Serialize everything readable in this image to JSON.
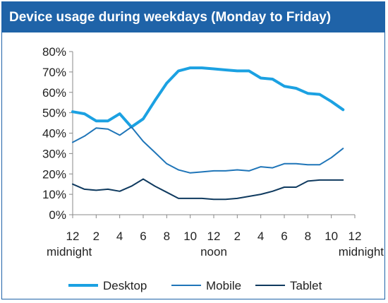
{
  "chart_data": {
    "type": "line",
    "title": "Device usage during weekdays (Monday to Friday)",
    "xlabel": "",
    "ylabel": "",
    "x_hours": [
      0,
      1,
      2,
      3,
      4,
      5,
      6,
      7,
      8,
      9,
      10,
      11,
      12,
      13,
      14,
      15,
      16,
      17,
      18,
      19,
      20,
      21,
      22,
      23
    ],
    "x_ticks": [
      {
        "hour": 0,
        "label": "12",
        "sublabel": "midnight"
      },
      {
        "hour": 2,
        "label": "2"
      },
      {
        "hour": 4,
        "label": "4"
      },
      {
        "hour": 6,
        "label": "6"
      },
      {
        "hour": 8,
        "label": "8"
      },
      {
        "hour": 10,
        "label": "10"
      },
      {
        "hour": 12,
        "label": "12",
        "sublabel": "noon"
      },
      {
        "hour": 14,
        "label": "2"
      },
      {
        "hour": 16,
        "label": "4"
      },
      {
        "hour": 18,
        "label": "6"
      },
      {
        "hour": 20,
        "label": "8"
      },
      {
        "hour": 22,
        "label": "10"
      },
      {
        "hour": 24,
        "label": "12",
        "sublabel": "midnight"
      }
    ],
    "xlim": [
      0,
      24
    ],
    "ylim": [
      0,
      80
    ],
    "y_ticks": [
      {
        "value": 0,
        "label": "0%"
      },
      {
        "value": 10,
        "label": "10%"
      },
      {
        "value": 20,
        "label": "20%"
      },
      {
        "value": 30,
        "label": "30%"
      },
      {
        "value": 40,
        "label": "40%"
      },
      {
        "value": 50,
        "label": "50%"
      },
      {
        "value": 60,
        "label": "60%"
      },
      {
        "value": 70,
        "label": "70%"
      },
      {
        "value": 80,
        "label": "80%"
      }
    ],
    "grid": false,
    "legend_position": "bottom",
    "series": [
      {
        "name": "Desktop",
        "color": "#1ba1e2",
        "width": 4,
        "values": [
          50.5,
          49.5,
          46,
          46,
          49.5,
          43,
          47,
          56,
          64.5,
          70.5,
          72,
          72,
          71.5,
          71,
          70.5,
          70.5,
          67,
          66.5,
          63,
          62,
          59.5,
          59,
          55.5,
          51.5
        ]
      },
      {
        "name": "Mobile",
        "color": "#1f75b8",
        "width": 2,
        "values": [
          35.5,
          38.5,
          42.5,
          42,
          39,
          43,
          36,
          30.5,
          25,
          22,
          20.5,
          21,
          21.5,
          21.5,
          22,
          21.5,
          23.5,
          23,
          25,
          25,
          24.5,
          24.5,
          28,
          32.5
        ]
      },
      {
        "name": "Tablet",
        "color": "#0f3a5f",
        "width": 2,
        "values": [
          15,
          12.5,
          12,
          12.5,
          11.5,
          14,
          17.5,
          14,
          11,
          8,
          8,
          8,
          7.5,
          7.5,
          8,
          9,
          10,
          11.5,
          13.5,
          13.5,
          16.5,
          17,
          17,
          17
        ]
      }
    ]
  }
}
